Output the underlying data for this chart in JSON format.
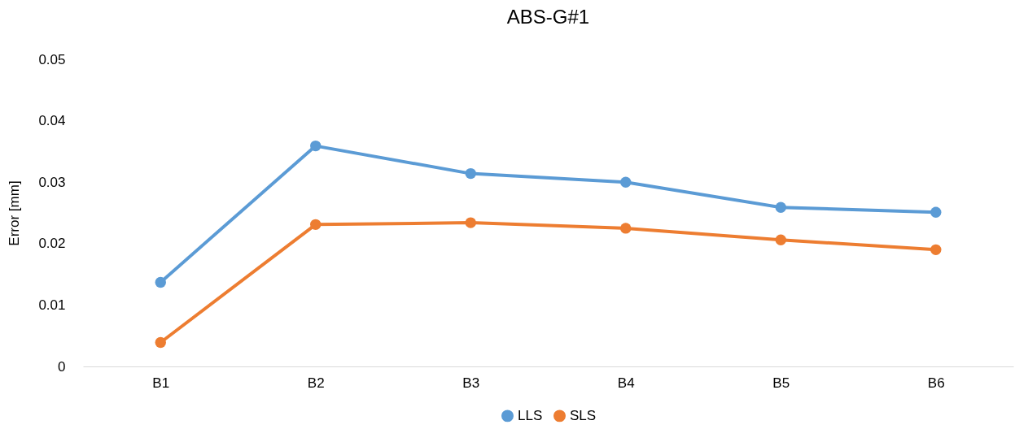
{
  "chart_data": {
    "type": "line",
    "title": "ABS-G#1",
    "ylabel": "Error [mm]",
    "categories": [
      "B1",
      "B2",
      "B3",
      "B4",
      "B5",
      "B6"
    ],
    "series": [
      {
        "name": "LLS",
        "color": "#5b9bd5",
        "values": [
          0.0137,
          0.0359,
          0.0314,
          0.03,
          0.0259,
          0.0251
        ]
      },
      {
        "name": "SLS",
        "color": "#ed7d31",
        "values": [
          0.0039,
          0.0231,
          0.0234,
          0.0225,
          0.0206,
          0.019
        ]
      }
    ],
    "ylim": [
      0,
      0.05
    ],
    "yticks": [
      0,
      0.01,
      0.02,
      0.03,
      0.04,
      0.05
    ],
    "grid": false,
    "legend": "bottom",
    "marker": "circle",
    "line_style": "solid"
  }
}
